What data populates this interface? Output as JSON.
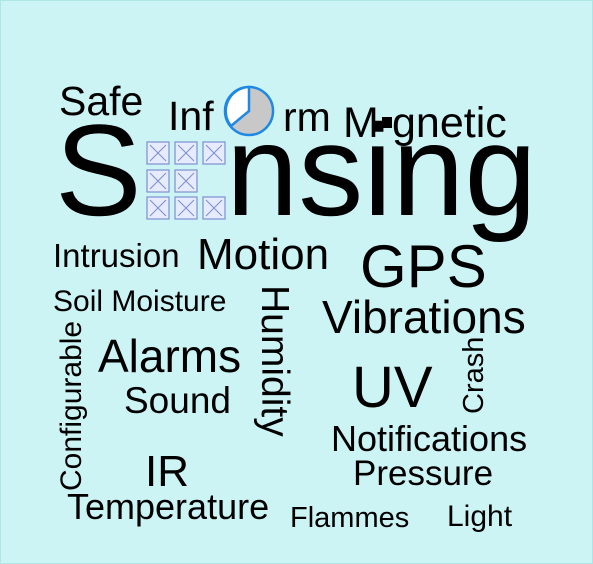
{
  "words": {
    "safe": "Safe",
    "inf": "Inf",
    "rm": "rm",
    "m": "M",
    "gnetic": "gnetic",
    "s": "S",
    "nsing": "nsing",
    "intrusion": "Intrusion",
    "motion": "Motion",
    "gps": "GPS",
    "soil_moisture": "Soil Moisture",
    "humidity": "Humidity",
    "vibrations": "Vibrations",
    "configurable": "Configurable",
    "alarms": "Alarms",
    "uv": "UV",
    "crash": "Crash",
    "sound": "Sound",
    "notifications": "Notifications",
    "ir": "IR",
    "pressure": "Pressure",
    "temperature": "Temperature",
    "flammes": "Flammes",
    "light": "Light"
  },
  "icons": {
    "pie": "pie-chart-icon",
    "grid": "image-grid-icon",
    "square": "square-icon"
  },
  "colors": {
    "background": "#cdf4f4",
    "text": "#000000",
    "pie_stroke": "#1e88e5",
    "pie_fill": "#c8c8c8",
    "grid_stroke": "#7b8fd0",
    "grid_fill": "#e6ebff"
  }
}
